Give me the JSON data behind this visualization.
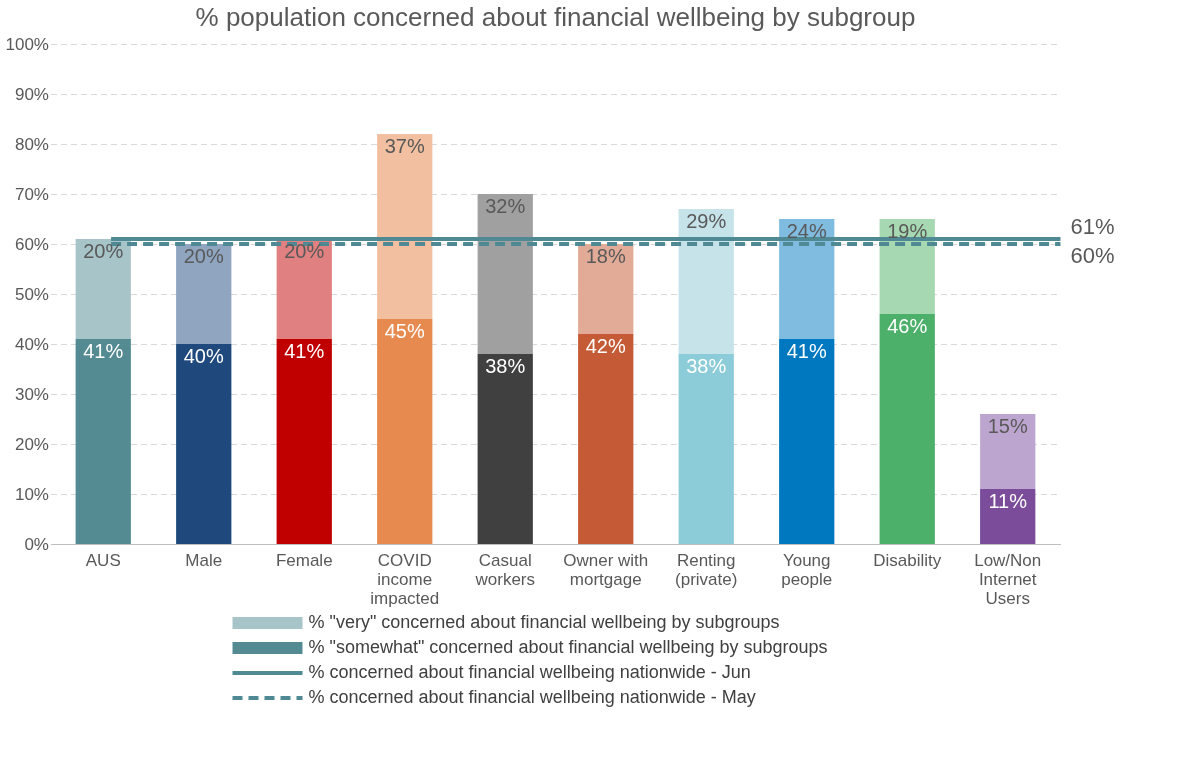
{
  "chart_data": {
    "type": "bar",
    "title": "% population concerned about financial wellbeing by subgroup",
    "categories": [
      "AUS",
      "Male",
      "Female",
      "COVID income impacted",
      "Casual workers",
      "Owner with mortgage",
      "Renting (private)",
      "Young people",
      "Disability",
      "Low/Non Internet Users"
    ],
    "stacked": true,
    "series": [
      {
        "name": "% \"somewhat\" concerned about financial wellbeing by subgroups",
        "color": "#548b93",
        "values": [
          41,
          40,
          41,
          45,
          38,
          42,
          38,
          41,
          46,
          11
        ],
        "value_labels": [
          "41%",
          "40%",
          "41%",
          "45%",
          "38%",
          "42%",
          "38%",
          "41%",
          "46%",
          "11%"
        ],
        "colors": [
          "#548b93",
          "#1f497d",
          "#c00000",
          "#e68a50",
          "#404040",
          "#c55a36",
          "#8ccbd8",
          "#0078c0",
          "#4caf6a",
          "#7a4c9a"
        ]
      },
      {
        "name": "% \"very\" concerned about financial wellbeing by subgroups",
        "color": "#a7c4c8",
        "values": [
          20,
          20,
          20,
          37,
          32,
          18,
          29,
          24,
          19,
          15
        ],
        "value_labels": [
          "20%",
          "20%",
          "20%",
          "37%",
          "32%",
          "18%",
          "29%",
          "24%",
          "19%",
          "15%"
        ],
        "colors": [
          "#a7c4c8",
          "#8fa5c0",
          "#e08080",
          "#f2c0a0",
          "#a0a0a0",
          "#e2ab98",
          "#c6e3ea",
          "#80bce0",
          "#a6d8b2",
          "#bca6d0"
        ]
      }
    ],
    "ylim": [
      0,
      100
    ],
    "yticks": [
      {
        "value": 0,
        "label": "0%"
      },
      {
        "value": 10,
        "label": "10%"
      },
      {
        "value": 20,
        "label": "20%"
      },
      {
        "value": 30,
        "label": "30%"
      },
      {
        "value": 40,
        "label": "40%"
      },
      {
        "value": 50,
        "label": "50%"
      },
      {
        "value": 60,
        "label": "60%"
      },
      {
        "value": 70,
        "label": "70%"
      },
      {
        "value": 80,
        "label": "80%"
      },
      {
        "value": 90,
        "label": "90%"
      },
      {
        "value": 100,
        "label": "100%"
      }
    ],
    "ref_lines": [
      {
        "axis": "y",
        "value": 61,
        "label": "% concerned about financial wellbeing nationwide - Jun",
        "color": "#4f8a94",
        "line_style": "solid"
      },
      {
        "axis": "y",
        "value": 60,
        "label": "% concerned about financial wellbeing nationwide - May",
        "color": "#4f8a94",
        "line_style": "dashed"
      }
    ],
    "annotations": [
      "61%",
      "60%"
    ],
    "grid": "y",
    "legend": "bottom"
  }
}
